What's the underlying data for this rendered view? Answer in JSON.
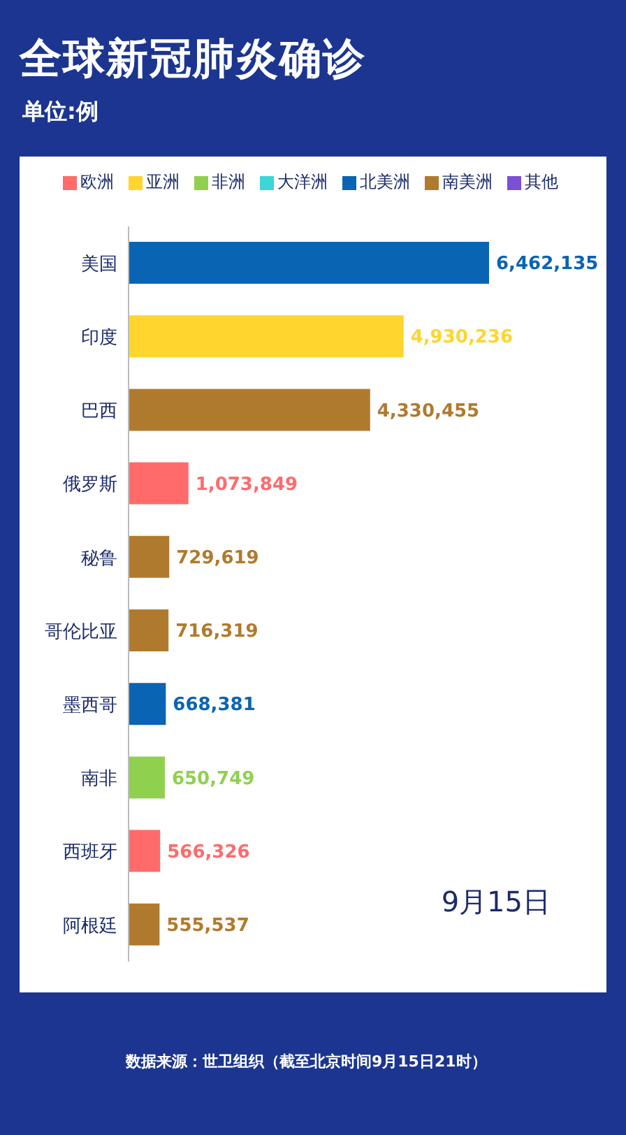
{
  "chart_data": {
    "type": "bar",
    "orientation": "horizontal",
    "stacked": true,
    "title": "全球新冠肺炎确诊",
    "subtitle": "单位:例",
    "categories": [
      "美国",
      "印度",
      "巴西",
      "俄罗斯",
      "秘鲁",
      "哥伦比亚",
      "墨西哥",
      "南非",
      "西班牙",
      "阿根廷"
    ],
    "series": [
      {
        "name": "欧洲",
        "color": "#ff6b6b",
        "values": [
          null,
          null,
          null,
          1073849,
          null,
          null,
          null,
          null,
          566326,
          null
        ],
        "value_labels": [
          null,
          null,
          null,
          "1,073,849",
          null,
          null,
          null,
          null,
          "566,326",
          null
        ]
      },
      {
        "name": "亚洲",
        "color": "#ffd52e",
        "values": [
          null,
          4930236,
          null,
          null,
          null,
          null,
          null,
          null,
          null,
          null
        ],
        "value_labels": [
          null,
          "4,930,236",
          null,
          null,
          null,
          null,
          null,
          null,
          null,
          null
        ]
      },
      {
        "name": "非洲",
        "color": "#8fd14f",
        "values": [
          null,
          null,
          null,
          null,
          null,
          null,
          null,
          650749,
          null,
          null
        ],
        "value_labels": [
          null,
          null,
          null,
          null,
          null,
          null,
          null,
          "650,749",
          null,
          null
        ]
      },
      {
        "name": "大洋洲",
        "color": "#3cd6d6",
        "values": [
          null,
          null,
          null,
          null,
          null,
          null,
          null,
          null,
          null,
          null
        ]
      },
      {
        "name": "北美洲",
        "color": "#0a64b4",
        "values": [
          6462135,
          null,
          null,
          null,
          null,
          null,
          668381,
          null,
          null,
          null
        ],
        "value_labels": [
          "6,462,135",
          null,
          null,
          null,
          null,
          null,
          "668,381",
          null,
          null,
          null
        ]
      },
      {
        "name": "南美洲",
        "color": "#b07a2e",
        "values": [
          null,
          null,
          4330455,
          null,
          729619,
          716319,
          null,
          null,
          null,
          555537
        ],
        "value_labels": [
          null,
          null,
          "4,330,455",
          null,
          "729,619",
          "716,319",
          null,
          null,
          null,
          "555,537"
        ]
      },
      {
        "name": "其他",
        "color": "#7b4fd6",
        "values": [
          null,
          null,
          null,
          null,
          null,
          null,
          null,
          null,
          null,
          null
        ]
      }
    ],
    "tick_labels": "y",
    "legend": "top",
    "annotations": [
      "9月15日",
      "数据来源：世卫组织（截至北京时间9月15日21时）"
    ]
  }
}
